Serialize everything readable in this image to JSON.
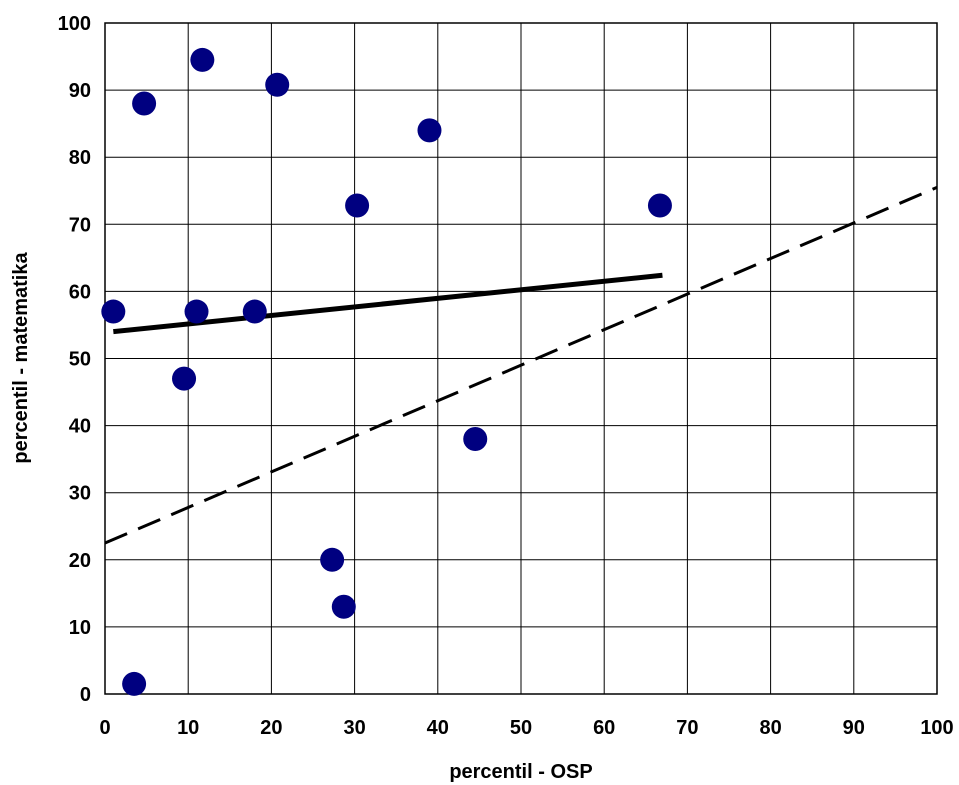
{
  "chart_data": {
    "type": "scatter",
    "title": "",
    "xlabel": "percentil - OSP",
    "ylabel": "percentil - matematika",
    "xlim": [
      0,
      100
    ],
    "ylim": [
      0,
      100
    ],
    "xticks": [
      0,
      10,
      20,
      30,
      40,
      50,
      60,
      70,
      80,
      90,
      100
    ],
    "yticks": [
      0,
      10,
      20,
      30,
      40,
      50,
      60,
      70,
      80,
      90,
      100
    ],
    "grid": true,
    "legend": "none",
    "series": [
      {
        "points": [
          {
            "x": 1,
            "y": 57
          },
          {
            "x": 3.5,
            "y": 1.5
          },
          {
            "x": 4.7,
            "y": 88
          },
          {
            "x": 9.5,
            "y": 47
          },
          {
            "x": 11,
            "y": 57
          },
          {
            "x": 11.7,
            "y": 94.5
          },
          {
            "x": 18,
            "y": 57
          },
          {
            "x": 20.7,
            "y": 90.8
          },
          {
            "x": 27.3,
            "y": 20
          },
          {
            "x": 28.7,
            "y": 13
          },
          {
            "x": 30.3,
            "y": 72.8
          },
          {
            "x": 39,
            "y": 84
          },
          {
            "x": 44.5,
            "y": 38
          },
          {
            "x": 66.7,
            "y": 72.8
          }
        ],
        "marker": "circle",
        "color": "#000080"
      }
    ],
    "lines": [
      {
        "style": "solid",
        "color": "#000000",
        "x": [
          1,
          67
        ],
        "y": [
          54,
          62.4
        ]
      },
      {
        "style": "dashed",
        "color": "#000000",
        "x": [
          0,
          100
        ],
        "y": [
          22.5,
          75.5
        ]
      }
    ]
  }
}
